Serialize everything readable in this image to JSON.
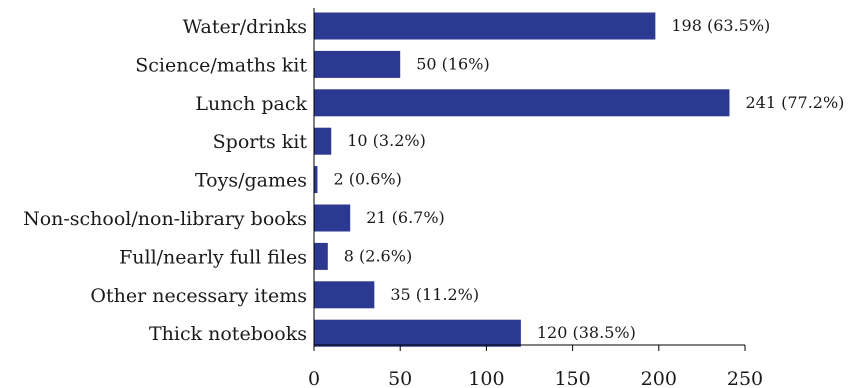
{
  "chart_data": {
    "type": "bar",
    "orientation": "horizontal",
    "categories": [
      "Water/drinks",
      "Science/maths kit",
      "Lunch pack",
      "Sports kit",
      "Toys/games",
      "Non-school/non-library books",
      "Full/nearly full files",
      "Other necessary items",
      "Thick notebooks"
    ],
    "values": [
      198,
      50,
      241,
      10,
      2,
      21,
      8,
      35,
      120
    ],
    "data_labels": [
      "198 (63.5%)",
      "50 (16%)",
      "241 (77.2%)",
      "10 (3.2%)",
      "2 (0.6%)",
      "21 (6.7%)",
      "8 (2.6%)",
      "35 (11.2%)",
      "120 (38.5%)"
    ],
    "xlim": [
      0,
      250
    ],
    "x_ticks": [
      0,
      50,
      100,
      150,
      200,
      250
    ],
    "x_tick_labels": [
      "0",
      "50",
      "100",
      "150",
      "200",
      "250"
    ],
    "title": "",
    "xlabel": "",
    "ylabel": "",
    "grid": false,
    "legend": "none",
    "bar_color": "#2b3990",
    "axis_color": "#000000"
  }
}
